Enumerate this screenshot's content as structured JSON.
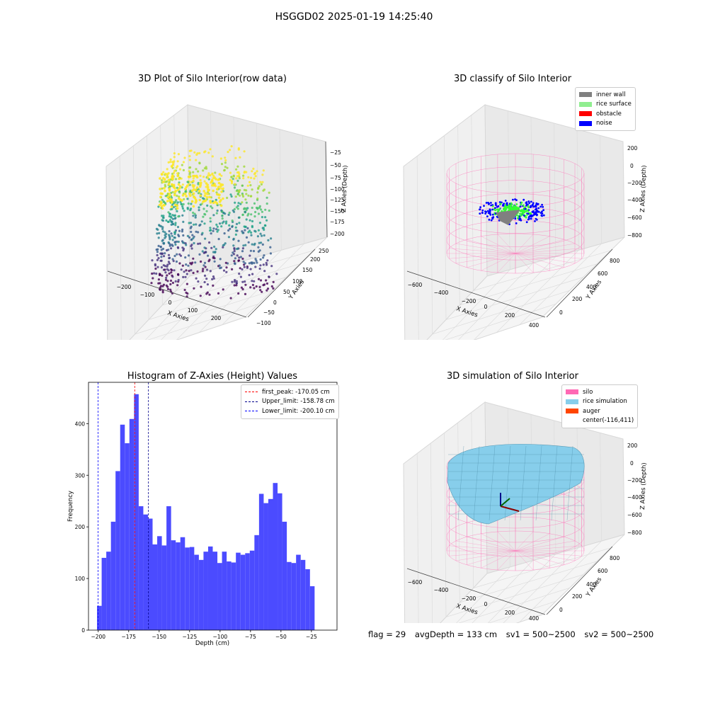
{
  "figure": {
    "title": "HSGGD02 2025-01-19 14:25:40"
  },
  "panels": {
    "raw": {
      "title": "3D Plot of Silo Interior(row data)",
      "xlabel": "X Axies",
      "ylabel": "Y Axies",
      "zlabel": "Z Axies (Depth)",
      "xticks": [
        "−200",
        "−100",
        "0",
        "100",
        "200"
      ],
      "yticks": [
        "−100",
        "−50",
        "0",
        "50",
        "100",
        "150",
        "200",
        "250"
      ],
      "zticks": [
        "−25",
        "−50",
        "−75",
        "−100",
        "−125",
        "−150",
        "−175",
        "−200"
      ]
    },
    "classify": {
      "title": "3D classify of Silo Interior",
      "xlabel": "X Axies",
      "ylabel": "Y Axies",
      "zlabel": "Z Axies (Depth)",
      "xticks": [
        "−600",
        "−400",
        "−200",
        "0",
        "200",
        "400"
      ],
      "yticks": [
        "0",
        "200",
        "400",
        "600",
        "800"
      ],
      "zticks": [
        "200",
        "0",
        "−200",
        "−400",
        "−600",
        "−800"
      ],
      "legend": [
        {
          "label": "inner wall",
          "color": "#808080"
        },
        {
          "label": "rice surface",
          "color": "#90ee90"
        },
        {
          "label": "obstacle",
          "color": "#ff0000"
        },
        {
          "label": "noise",
          "color": "#0000ff"
        }
      ]
    },
    "histogram": {
      "title": "Histogram of Z-Axies (Height) Values",
      "xlabel": "Depth (cm)",
      "ylabel": "Frequency",
      "xticks": [
        "−200",
        "−175",
        "−150",
        "−125",
        "−100",
        "−75",
        "−50",
        "−25"
      ],
      "yticks": [
        "0",
        "100",
        "200",
        "300",
        "400"
      ],
      "legend": [
        {
          "label": "first_peak: -170.05 cm",
          "color": "#ff0000"
        },
        {
          "label": "Upper_limit: -158.78 cm",
          "color": "#00008b"
        },
        {
          "label": "Lower_limit: -200.10 cm",
          "color": "#0000ff"
        }
      ]
    },
    "simulation": {
      "title": "3D simulation of Silo Interior",
      "xlabel": "X Axies",
      "ylabel": "Y Axies",
      "zlabel": "Z Axies (Depth)",
      "xticks": [
        "−600",
        "−400",
        "−200",
        "0",
        "200",
        "400"
      ],
      "yticks": [
        "0",
        "200",
        "400",
        "600",
        "800"
      ],
      "zticks": [
        "200",
        "0",
        "−200",
        "−400",
        "−600",
        "−800"
      ],
      "legend": [
        {
          "label": "silo",
          "color": "#ff69b4"
        },
        {
          "label": "rice simulation",
          "color": "#87ceeb"
        },
        {
          "label": "auger",
          "color": "#ff4500"
        },
        {
          "label": "center(-116,411)",
          "color": "#ffffff"
        }
      ]
    }
  },
  "footer": {
    "flag": "flag = 29",
    "avg": "avgDepth = 133 cm",
    "sv1": "sv1 = 500~2500",
    "sv2": "sv2 = 500~2500"
  },
  "chart_data": [
    {
      "type": "bar",
      "title": "Histogram of Z-Axies (Height) Values",
      "xlabel": "Depth (cm)",
      "ylabel": "Frequency",
      "bin_start": -201.0,
      "bin_width": 3.8,
      "values": [
        47,
        140,
        152,
        210,
        308,
        398,
        362,
        409,
        457,
        240,
        224,
        216,
        166,
        182,
        164,
        240,
        174,
        170,
        180,
        160,
        161,
        146,
        136,
        152,
        162,
        152,
        130,
        152,
        133,
        131,
        150,
        146,
        149,
        154,
        184,
        264,
        246,
        254,
        285,
        265,
        210,
        132,
        130,
        146,
        136,
        118,
        85
      ],
      "xlim": [
        -208,
        -4
      ],
      "ylim": [
        0,
        480
      ],
      "vlines": [
        {
          "name": "first_peak: -170.05 cm",
          "x": -170.05,
          "color": "#ff0000"
        },
        {
          "name": "Upper_limit: -158.78 cm",
          "x": -158.78,
          "color": "#00008b"
        },
        {
          "name": "Lower_limit: -200.10 cm",
          "x": -200.1,
          "color": "#0000ff"
        }
      ],
      "legend_position": "top-right",
      "bar_color": "#4b4bff",
      "grid": false
    }
  ]
}
